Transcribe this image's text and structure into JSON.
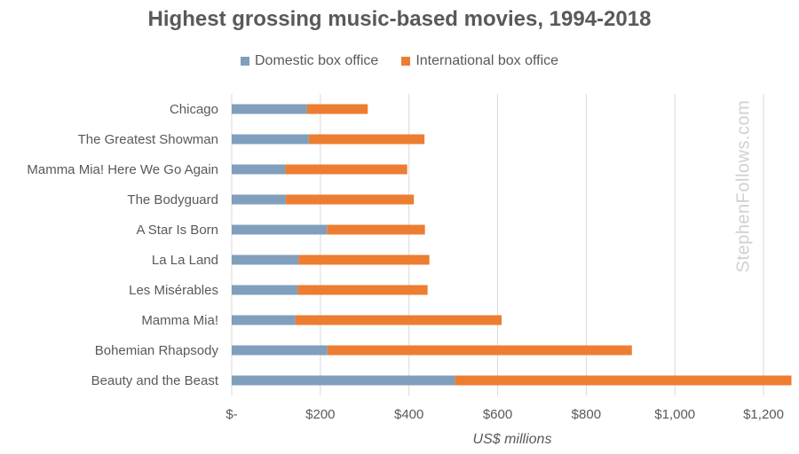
{
  "colors": {
    "domestic": "#7f9fbd",
    "international": "#ed7d31",
    "grid": "#d9d9d9",
    "text": "#595959"
  },
  "watermark": "StephenFollows.com",
  "chart_data": {
    "type": "bar",
    "orientation": "horizontal",
    "stacked": true,
    "title": "Highest grossing music-based movies, 1994-2018",
    "xlabel": "US$ millions",
    "ylabel": "",
    "xlim": [
      0,
      1250
    ],
    "x_ticks": [
      0,
      200,
      400,
      600,
      800,
      1000,
      1200
    ],
    "x_tick_labels": [
      "$-",
      "$200",
      "$400",
      "$600",
      "$800",
      "$1,000",
      "$1,200"
    ],
    "grid": "vertical",
    "legend_position": "top",
    "categories": [
      "Chicago",
      "The Greatest Showman",
      "Mamma Mia! Here We Go Again",
      "The Bodyguard",
      "A Star Is Born",
      "La La Land",
      "Les Misérables",
      "Mamma Mia!",
      "Bohemian Rhapsody",
      "Beauty and the Beast"
    ],
    "series": [
      {
        "name": "Domestic box office",
        "values": [
          170,
          174,
          121,
          122,
          215,
          151,
          149,
          144,
          216,
          504
        ]
      },
      {
        "name": "International box office",
        "values": [
          137,
          261,
          275,
          289,
          221,
          295,
          293,
          465,
          687,
          759
        ]
      }
    ]
  }
}
